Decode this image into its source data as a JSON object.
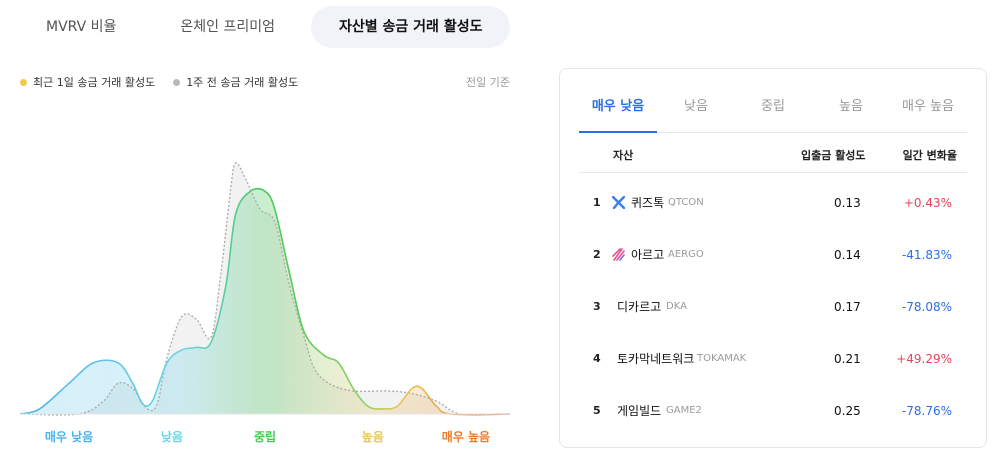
{
  "top_tabs": [
    {
      "label": "MVRV 비율",
      "active": false
    },
    {
      "label": "온체인 프리미엄",
      "active": false
    },
    {
      "label": "자산별 송금 거래 활성도",
      "active": true
    }
  ],
  "legend": {
    "recent": {
      "label": "최근 1일 송금 거래 활성도",
      "color": "#f2c94c"
    },
    "week": {
      "label": "1주 전 송금 거래 활성도",
      "color": "#b8b8b8"
    }
  },
  "basis_label": "전일 기준",
  "chart_data": {
    "type": "area",
    "x_categories": [
      "매우 낮음",
      "낮음",
      "중립",
      "높음",
      "매우 높음"
    ],
    "category_colors": [
      "#4fb3e8",
      "#6cd5e6",
      "#46c75a",
      "#e8c45a",
      "#f07a2c"
    ],
    "x_range": [
      0,
      1
    ],
    "y_range": [
      0,
      1
    ],
    "series": [
      {
        "name": "최근 1일 송금 거래 활성도",
        "points": [
          [
            0,
            0
          ],
          [
            0.04,
            0.02
          ],
          [
            0.1,
            0.12
          ],
          [
            0.15,
            0.2
          ],
          [
            0.2,
            0.2
          ],
          [
            0.23,
            0.12
          ],
          [
            0.25,
            0.04
          ],
          [
            0.27,
            0.05
          ],
          [
            0.3,
            0.2
          ],
          [
            0.33,
            0.25
          ],
          [
            0.36,
            0.26
          ],
          [
            0.39,
            0.28
          ],
          [
            0.42,
            0.5
          ],
          [
            0.44,
            0.78
          ],
          [
            0.47,
            0.87
          ],
          [
            0.5,
            0.87
          ],
          [
            0.52,
            0.8
          ],
          [
            0.55,
            0.55
          ],
          [
            0.58,
            0.32
          ],
          [
            0.62,
            0.23
          ],
          [
            0.65,
            0.2
          ],
          [
            0.68,
            0.1
          ],
          [
            0.71,
            0.03
          ],
          [
            0.74,
            0.02
          ],
          [
            0.77,
            0.03
          ],
          [
            0.8,
            0.1
          ],
          [
            0.82,
            0.1
          ],
          [
            0.85,
            0.03
          ],
          [
            0.88,
            0
          ],
          [
            1,
            0
          ]
        ]
      },
      {
        "name": "1주 전 송금 거래 활성도",
        "points": [
          [
            0,
            0
          ],
          [
            0.12,
            0
          ],
          [
            0.17,
            0.05
          ],
          [
            0.2,
            0.12
          ],
          [
            0.23,
            0.1
          ],
          [
            0.26,
            0.02
          ],
          [
            0.28,
            0.04
          ],
          [
            0.3,
            0.22
          ],
          [
            0.33,
            0.38
          ],
          [
            0.36,
            0.37
          ],
          [
            0.39,
            0.3
          ],
          [
            0.41,
            0.55
          ],
          [
            0.43,
            0.88
          ],
          [
            0.44,
            0.98
          ],
          [
            0.46,
            0.92
          ],
          [
            0.49,
            0.8
          ],
          [
            0.52,
            0.75
          ],
          [
            0.55,
            0.5
          ],
          [
            0.58,
            0.3
          ],
          [
            0.6,
            0.18
          ],
          [
            0.63,
            0.12
          ],
          [
            0.68,
            0.09
          ],
          [
            0.75,
            0.09
          ],
          [
            0.8,
            0.08
          ],
          [
            0.85,
            0.05
          ],
          [
            0.9,
            0
          ],
          [
            1,
            0
          ]
        ]
      }
    ]
  },
  "panel": {
    "tabs": [
      {
        "label": "매우 낮음",
        "active": true
      },
      {
        "label": "낮음",
        "active": false
      },
      {
        "label": "중립",
        "active": false
      },
      {
        "label": "높음",
        "active": false
      },
      {
        "label": "매우 높음",
        "active": false
      }
    ],
    "headers": {
      "asset": "자산",
      "activity": "입출금 활성도",
      "change": "일간 변화율"
    },
    "rows": [
      {
        "rank": "1",
        "name": "퀴즈톡",
        "symbol": "QTCON",
        "value": "0.13",
        "change": "+0.43%",
        "dir": "pos",
        "icon": "qtcon-logo-icon"
      },
      {
        "rank": "2",
        "name": "아르고",
        "symbol": "AERGO",
        "value": "0.14",
        "change": "-41.83%",
        "dir": "neg",
        "icon": "aergo-logo-icon"
      },
      {
        "rank": "3",
        "name": "디카르고",
        "symbol": "DKA",
        "value": "0.17",
        "change": "-78.08%",
        "dir": "neg",
        "icon": ""
      },
      {
        "rank": "4",
        "name": "토카막네트워크",
        "symbol": "TOKAMAK",
        "value": "0.21",
        "change": "+49.29%",
        "dir": "pos",
        "icon": ""
      },
      {
        "rank": "5",
        "name": "게임빌드",
        "symbol": "GAME2",
        "value": "0.25",
        "change": "-78.76%",
        "dir": "neg",
        "icon": ""
      }
    ]
  }
}
